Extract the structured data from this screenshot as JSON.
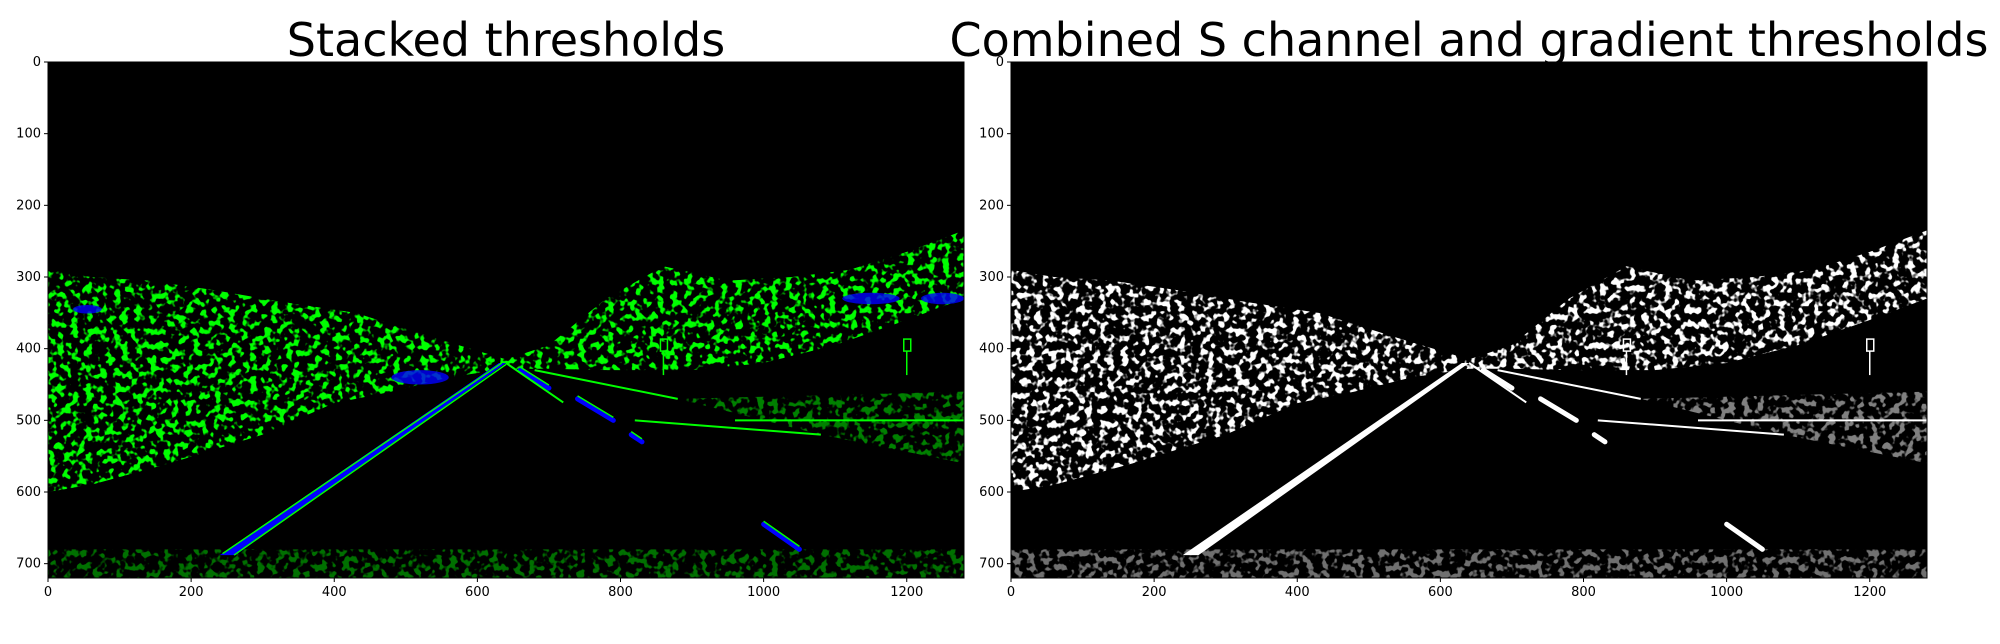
{
  "figure": {
    "panels": [
      {
        "id": "stacked",
        "title": "Stacked thresholds",
        "mode": "color",
        "colors": {
          "background": "#000000",
          "green_channel": "#00ff00",
          "blue_channel": "#0000ff",
          "both_channels": "#00ffff"
        }
      },
      {
        "id": "combined",
        "title": "Combined S channel and gradient thresholds",
        "mode": "binary",
        "colors": {
          "background": "#000000",
          "on": "#ffffff"
        }
      }
    ],
    "axes": {
      "x_range": [
        0,
        1280
      ],
      "y_range": [
        720,
        0
      ],
      "x_ticks": [
        "0",
        "200",
        "400",
        "600",
        "800",
        "1000",
        "1200"
      ],
      "y_ticks": [
        "0",
        "100",
        "200",
        "300",
        "400",
        "500",
        "600",
        "700"
      ]
    }
  }
}
